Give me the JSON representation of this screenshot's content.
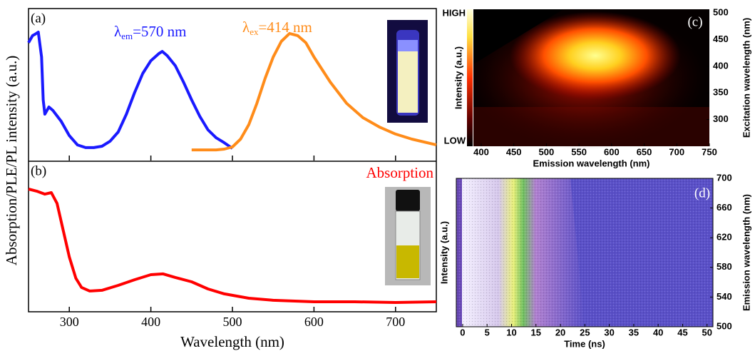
{
  "chart_data": [
    {
      "type": "line",
      "panel_label": "(a)",
      "ylabel": "Absorption/PLE/PL intensity (a.u.)",
      "xlim": [
        250,
        750
      ],
      "ylim": [
        0,
        100
      ],
      "series": [
        {
          "color": "#1a1aff",
          "x": [
            250,
            255,
            258,
            262,
            266,
            268,
            270,
            275,
            280,
            290,
            300,
            310,
            320,
            330,
            340,
            350,
            360,
            370,
            380,
            390,
            400,
            410,
            414,
            420,
            430,
            440,
            450,
            460,
            470,
            480,
            490,
            500
          ],
          "values": [
            77.5,
            82.2,
            83.1,
            84.5,
            68.1,
            39.9,
            30.5,
            35.2,
            32.9,
            25.8,
            16.4,
            10.3,
            8.5,
            8.5,
            9.4,
            12.7,
            18.8,
            30.5,
            44.6,
            57.3,
            65.7,
            70.4,
            71.8,
            69.0,
            62.4,
            51.6,
            39.9,
            29.1,
            20.2,
            15.0,
            11.7,
            8.0
          ]
        },
        {
          "color": "#ff8c1a",
          "x": [
            450,
            480,
            490,
            500,
            510,
            520,
            530,
            540,
            550,
            560,
            570,
            580,
            590,
            600,
            620,
            640,
            660,
            680,
            700,
            720,
            750
          ],
          "values": [
            7.0,
            7.0,
            7.5,
            8.9,
            14.1,
            23.5,
            37.6,
            54.0,
            68.1,
            78.4,
            83.6,
            82.2,
            77.5,
            68.1,
            51.6,
            37.6,
            28.2,
            22.1,
            17.4,
            14.1,
            10.3
          ]
        }
      ],
      "annotations": [
        {
          "symbol": "λ",
          "sub": "em",
          "text": "=570 nm",
          "color": "#1a1aff"
        },
        {
          "symbol": "λ",
          "sub": "ex",
          "text": "=414 nm",
          "color": "#ff8c1a"
        }
      ]
    },
    {
      "type": "line",
      "panel_label": "(b)",
      "xlabel": "Wavelength (nm)",
      "xlim": [
        250,
        750
      ],
      "xticks": [
        300,
        400,
        500,
        600,
        700
      ],
      "ylim": [
        0,
        100
      ],
      "series": [
        {
          "name": "Absorption",
          "color": "#ff0000",
          "x": [
            250,
            260,
            270,
            278,
            285,
            292,
            300,
            308,
            315,
            325,
            340,
            360,
            380,
            400,
            415,
            430,
            450,
            470,
            490,
            520,
            550,
            600,
            650,
            700,
            750
          ],
          "values": [
            82.3,
            80.9,
            78.9,
            79.9,
            72.7,
            56.0,
            36.8,
            22.5,
            16.3,
            13.9,
            14.4,
            17.7,
            21.5,
            24.9,
            25.4,
            23.0,
            20.1,
            15.3,
            12.0,
            9.1,
            7.7,
            6.7,
            6.7,
            6.2,
            6.7
          ]
        }
      ]
    },
    {
      "type": "heatmap",
      "panel_label": "(c)",
      "xlabel": "Emission wavelength (nm)",
      "ylabel": "Excitation wavelength (nm)",
      "xlim": [
        388,
        750
      ],
      "xticks": [
        400,
        450,
        500,
        550,
        600,
        650,
        700,
        750
      ],
      "ylim": [
        250,
        507
      ],
      "yticks": [
        300,
        350,
        400,
        450,
        500
      ],
      "colorbar": {
        "label": "Intensity (a.u.)",
        "high": "HIGH",
        "low": "LOW"
      }
    },
    {
      "type": "heatmap",
      "panel_label": "(d)",
      "xlabel": "Time (ns)",
      "ylabel": "Emission wavelength (nm)",
      "xlim": [
        -1.3,
        51.2
      ],
      "xticks": [
        0,
        5,
        10,
        15,
        20,
        25,
        30,
        35,
        40,
        45,
        50
      ],
      "ylim": [
        500,
        700
      ],
      "yticks": [
        500,
        540,
        580,
        620,
        660,
        700
      ],
      "colorbar": {
        "label": "Intensity (a.u.)"
      }
    }
  ]
}
